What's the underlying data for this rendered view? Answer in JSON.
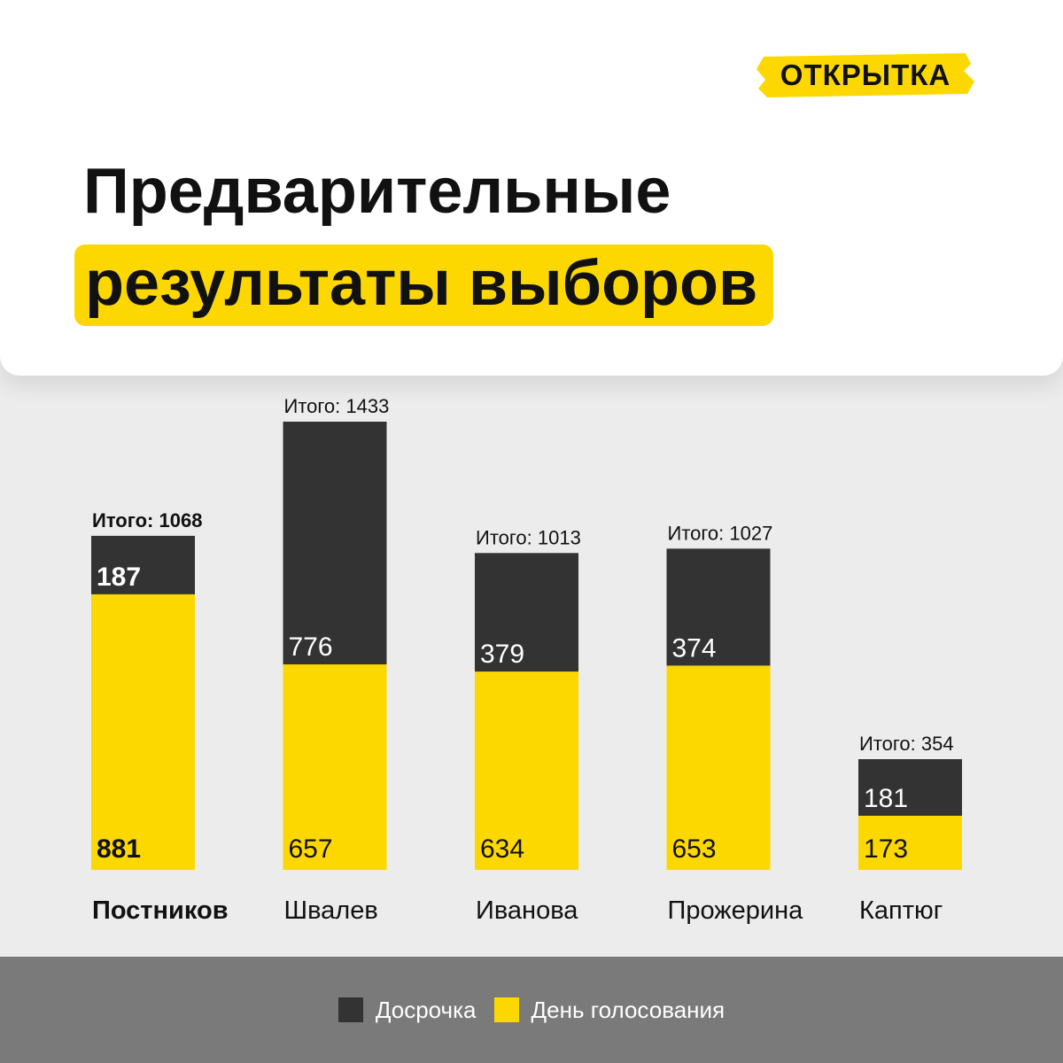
{
  "brand": {
    "label": "ОТКРЫТКА"
  },
  "header": {
    "title_line1": "Предварительные",
    "title_line2": "результаты выборов"
  },
  "colors": {
    "early": "#333333",
    "election_day": "#fdd800",
    "legend_bg": "#7a7a7a",
    "background": "#ececec"
  },
  "chart_data": {
    "type": "bar",
    "stacked": true,
    "title": "Предварительные результаты выборов",
    "categories": [
      "Постников",
      "Швалев",
      "Иванова",
      "Прожерина",
      "Каптюг"
    ],
    "series": [
      {
        "name": "День голосования",
        "values": [
          881,
          657,
          634,
          653,
          173
        ]
      },
      {
        "name": "Досрочка",
        "values": [
          187,
          776,
          379,
          374,
          181
        ]
      }
    ],
    "totals": [
      1068,
      1433,
      1013,
      1027,
      354
    ],
    "total_prefix": "Итого:",
    "highlighted_category": "Постников",
    "ylim": [
      0,
      1433
    ],
    "legend_position": "bottom"
  },
  "legend": {
    "items": [
      {
        "label": "Досрочка",
        "color": "#333333"
      },
      {
        "label": "День голосования",
        "color": "#fdd800"
      }
    ]
  }
}
